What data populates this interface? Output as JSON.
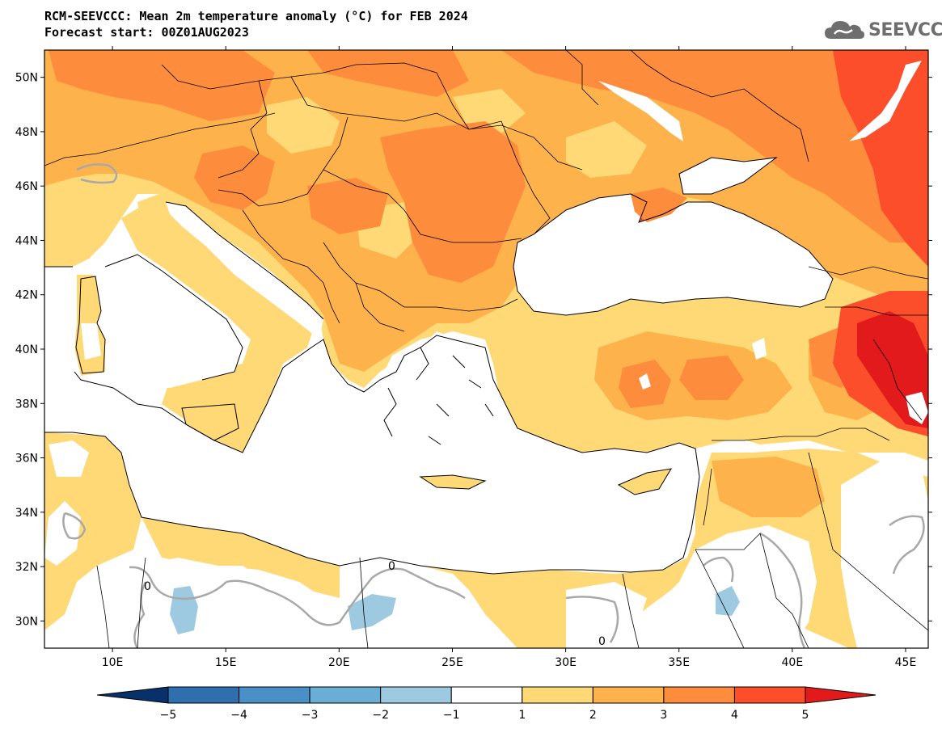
{
  "title": {
    "line1": "RCM-SEEVCCC: Mean 2m temperature anomaly (°C) for FEB 2024",
    "line2": "Forecast start: 00Z01AUG2023"
  },
  "logo": {
    "text": "SEEVCCC",
    "icon": "cloud-icon"
  },
  "map": {
    "lon_range": [
      7,
      46
    ],
    "lat_range": [
      29,
      51
    ],
    "lat_ticks": [
      "50N",
      "48N",
      "46N",
      "44N",
      "42N",
      "40N",
      "38N",
      "36N",
      "34N",
      "32N",
      "30N"
    ],
    "lat_values": [
      50,
      48,
      46,
      44,
      42,
      40,
      38,
      36,
      34,
      32,
      30
    ],
    "lon_ticks": [
      "10E",
      "15E",
      "20E",
      "25E",
      "30E",
      "35E",
      "40E",
      "45E"
    ],
    "lon_values": [
      10,
      15,
      20,
      25,
      30,
      35,
      40,
      45
    ],
    "contour_label": "0"
  },
  "colorbar": {
    "labels": [
      "−5",
      "−4",
      "−3",
      "−2",
      "−1",
      "1",
      "2",
      "3",
      "4",
      "5"
    ],
    "colors": [
      "#08306b",
      "#2f6fad",
      "#4a8fc6",
      "#6aaed6",
      "#9ecae1",
      "#ffffff",
      "#fed976",
      "#feb24c",
      "#fd8d3c",
      "#fc4e2a",
      "#e31a1c"
    ]
  }
}
